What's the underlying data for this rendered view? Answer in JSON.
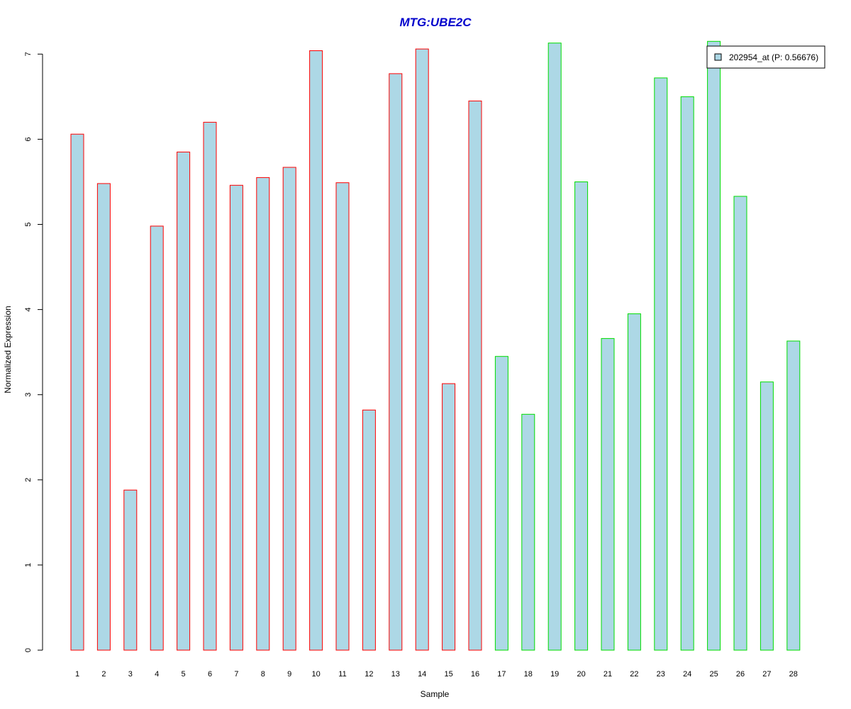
{
  "chart_data": {
    "type": "bar",
    "title": "MTG:UBE2C",
    "xlabel": "Sample",
    "ylabel": "Normalized Expression",
    "ylim": [
      0,
      7.2
    ],
    "yticks": [
      0,
      1,
      2,
      3,
      4,
      5,
      6,
      7
    ],
    "categories": [
      "1",
      "2",
      "3",
      "4",
      "5",
      "6",
      "7",
      "8",
      "9",
      "10",
      "11",
      "12",
      "13",
      "14",
      "15",
      "16",
      "17",
      "18",
      "19",
      "20",
      "21",
      "22",
      "23",
      "24",
      "25",
      "26",
      "27",
      "28"
    ],
    "values": [
      6.06,
      5.48,
      1.88,
      4.98,
      5.85,
      6.2,
      5.46,
      5.55,
      5.67,
      7.04,
      5.49,
      2.82,
      6.77,
      7.06,
      3.13,
      6.45,
      3.45,
      2.77,
      7.13,
      5.5,
      3.66,
      3.95,
      6.72,
      6.5,
      7.15,
      5.33,
      3.15,
      3.63
    ],
    "groups": [
      "a",
      "a",
      "a",
      "a",
      "a",
      "a",
      "a",
      "a",
      "a",
      "a",
      "a",
      "a",
      "a",
      "a",
      "a",
      "a",
      "b",
      "b",
      "b",
      "b",
      "b",
      "b",
      "b",
      "b",
      "b",
      "b",
      "b",
      "b"
    ],
    "colors": {
      "title": "#0000cc",
      "fill": "#add8e6",
      "border_group_a": "#ff0000",
      "border_group_b": "#00dd00"
    },
    "legend": {
      "position": "top-right",
      "label": "202954_at (P: 0.56676)"
    },
    "grid": false
  }
}
